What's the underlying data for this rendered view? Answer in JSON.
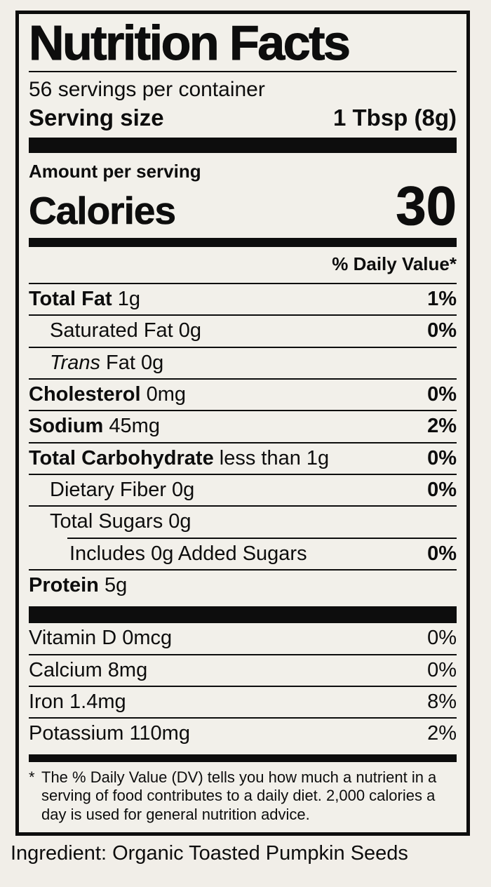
{
  "colors": {
    "background": "#f1eee8",
    "label_background": "#f2f0ea",
    "ink": "#0d0d0d"
  },
  "label": {
    "title": "Nutrition Facts",
    "servings_per_container": "56 servings per container",
    "serving_size": {
      "label": "Serving size",
      "value": "1 Tbsp (8g)"
    },
    "amount_per_serving": "Amount per serving",
    "calories": {
      "label": "Calories",
      "value": "30"
    },
    "daily_value_header": "% Daily Value*",
    "nutrients": [
      {
        "bold": "Total Fat",
        "italic": "",
        "regular": " 1g",
        "dv": "1%"
      },
      {
        "bold": "",
        "italic": "",
        "regular": "Saturated Fat 0g",
        "dv": "0%"
      },
      {
        "bold": "",
        "italic": "Trans",
        "regular": " Fat 0g",
        "dv": ""
      },
      {
        "bold": "Cholesterol",
        "italic": "",
        "regular": " 0mg",
        "dv": "0%"
      },
      {
        "bold": "Sodium",
        "italic": "",
        "regular": " 45mg",
        "dv": "2%"
      },
      {
        "bold": "Total Carbohydrate",
        "italic": "",
        "regular": " less than 1g",
        "dv": "0%"
      },
      {
        "bold": "",
        "italic": "",
        "regular": "Dietary Fiber 0g",
        "dv": "0%"
      },
      {
        "bold": "",
        "italic": "",
        "regular": "Total Sugars 0g",
        "dv": ""
      },
      {
        "bold": "",
        "italic": "",
        "regular": "Includes 0g Added Sugars",
        "dv": "0%"
      },
      {
        "bold": "Protein",
        "italic": "",
        "regular": " 5g",
        "dv": ""
      }
    ],
    "vitamins": [
      {
        "text": "Vitamin D 0mcg",
        "dv": "0%"
      },
      {
        "text": "Calcium 8mg",
        "dv": "0%"
      },
      {
        "text": "Iron 1.4mg",
        "dv": "8%"
      },
      {
        "text": "Potassium 110mg",
        "dv": "2%"
      }
    ],
    "footnote": {
      "symbol": "*",
      "text": "The % Daily Value (DV) tells you how much a nutrient in a serving of food contributes to a daily diet. 2,000 calories a day is used for general nutrition advice."
    }
  },
  "ingredient_line": "Ingredient: Organic Toasted Pumpkin Seeds"
}
